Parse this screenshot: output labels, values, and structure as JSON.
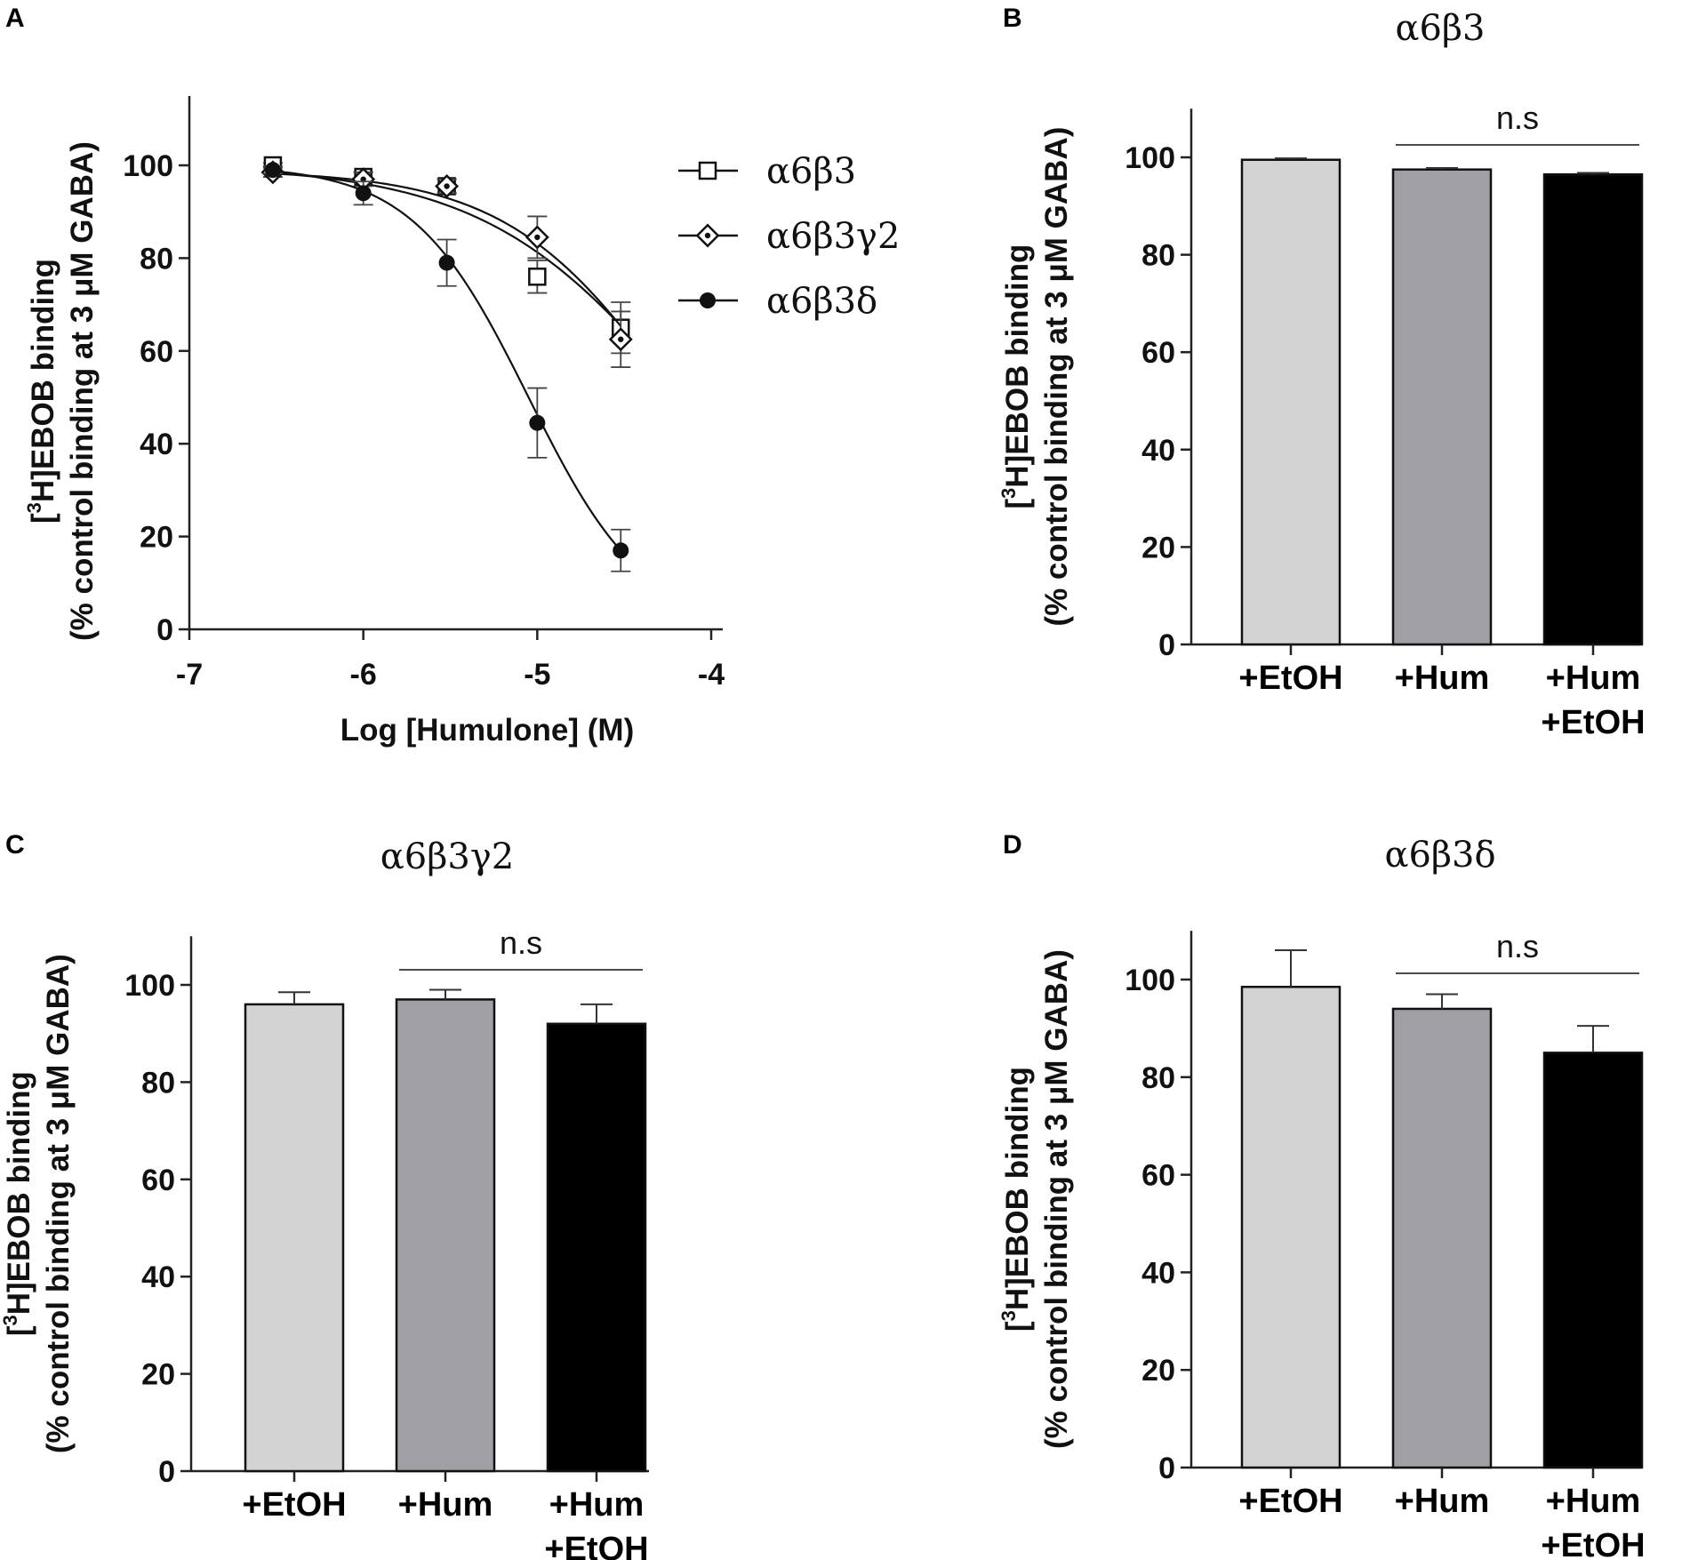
{
  "panels": {
    "A": "A",
    "B": "B",
    "C": "C",
    "D": "D"
  },
  "y_axis_label_line1_prefix": "[",
  "y_axis_label_sup": "3",
  "y_axis_label_line1_suffix": "H]EBOB binding",
  "y_axis_label_line2": "(% control binding at 3 μM GABA)",
  "colors": {
    "etoh": "#d3d3d3",
    "hum": "#a0a0a4",
    "hum_etoh": "#000000"
  },
  "chart_data": [
    {
      "id": "A",
      "type": "line",
      "xlabel": "Log [Humulone] (M)",
      "ylabel": "[3H]EBOB binding (% control binding at 3 μM GABA)",
      "xlim": [
        -7,
        -4
      ],
      "ylim": [
        0,
        110
      ],
      "xticks": [
        -7,
        -6,
        -5,
        -4
      ],
      "yticks": [
        0,
        20,
        40,
        60,
        80,
        100
      ],
      "series": [
        {
          "name": "α6β3",
          "marker": "open-square",
          "points": [
            {
              "x": -6.52,
              "y": 100,
              "err": 0.5
            },
            {
              "x": -6.0,
              "y": 97.5,
              "err": 1.0
            },
            {
              "x": -5.52,
              "y": 95.5,
              "err": 1.5
            },
            {
              "x": -5.0,
              "y": 76,
              "err": 3.5
            },
            {
              "x": -4.52,
              "y": 65,
              "err": 5.5
            }
          ],
          "curve": {
            "top": 100,
            "bottom": 0,
            "log_ic50": -4.15,
            "hill": 0.75
          }
        },
        {
          "name": "α6β3γ2",
          "marker": "open-diamond",
          "points": [
            {
              "x": -6.52,
              "y": 98.5,
              "err": 1.0
            },
            {
              "x": -6.0,
              "y": 97,
              "err": 1.5
            },
            {
              "x": -5.52,
              "y": 95.5,
              "err": 1.5
            },
            {
              "x": -5.0,
              "y": 84.5,
              "err": 4.5
            },
            {
              "x": -4.52,
              "y": 62.5,
              "err": 6.0
            }
          ],
          "curve": {
            "top": 99,
            "bottom": 0,
            "log_ic50": -4.2,
            "hill": 0.9
          }
        },
        {
          "name": "α6β3δ",
          "marker": "filled-circle",
          "points": [
            {
              "x": -6.52,
              "y": 99,
              "err": 0.8
            },
            {
              "x": -6.0,
              "y": 94,
              "err": 2.5
            },
            {
              "x": -5.52,
              "y": 79,
              "err": 5.0
            },
            {
              "x": -5.0,
              "y": 44.5,
              "err": 7.5
            },
            {
              "x": -4.52,
              "y": 17,
              "err": 4.5
            }
          ],
          "curve": {
            "top": 100,
            "bottom": 0,
            "log_ic50": -5.05,
            "hill": 1.3
          }
        }
      ]
    },
    {
      "id": "B",
      "type": "bar",
      "title": "α6β3",
      "categories": [
        "+EtOH",
        "+Hum",
        "+Hum\n+EtOH"
      ],
      "values": [
        99.5,
        97.5,
        96.5
      ],
      "errors": [
        0.3,
        0.3,
        0.3
      ],
      "ylim": [
        0,
        110
      ],
      "yticks": [
        0,
        20,
        40,
        60,
        80,
        100
      ],
      "annotation": "n.s"
    },
    {
      "id": "C",
      "type": "bar",
      "title": "α6β3γ2",
      "categories": [
        "+EtOH",
        "+Hum",
        "+Hum\n+EtOH"
      ],
      "values": [
        96,
        97,
        92
      ],
      "errors": [
        2.5,
        2.0,
        4.0
      ],
      "ylim": [
        0,
        110
      ],
      "yticks": [
        0,
        20,
        40,
        60,
        80,
        100
      ],
      "annotation": "n.s"
    },
    {
      "id": "D",
      "type": "bar",
      "title": "α6β3δ",
      "categories": [
        "+EtOH",
        "+Hum",
        "+Hum\n+EtOH"
      ],
      "values": [
        98.5,
        94,
        85
      ],
      "errors": [
        7.5,
        3.0,
        5.5
      ],
      "ylim": [
        0,
        110
      ],
      "yticks": [
        0,
        20,
        40,
        60,
        80,
        100
      ],
      "annotation": "n.s"
    }
  ]
}
